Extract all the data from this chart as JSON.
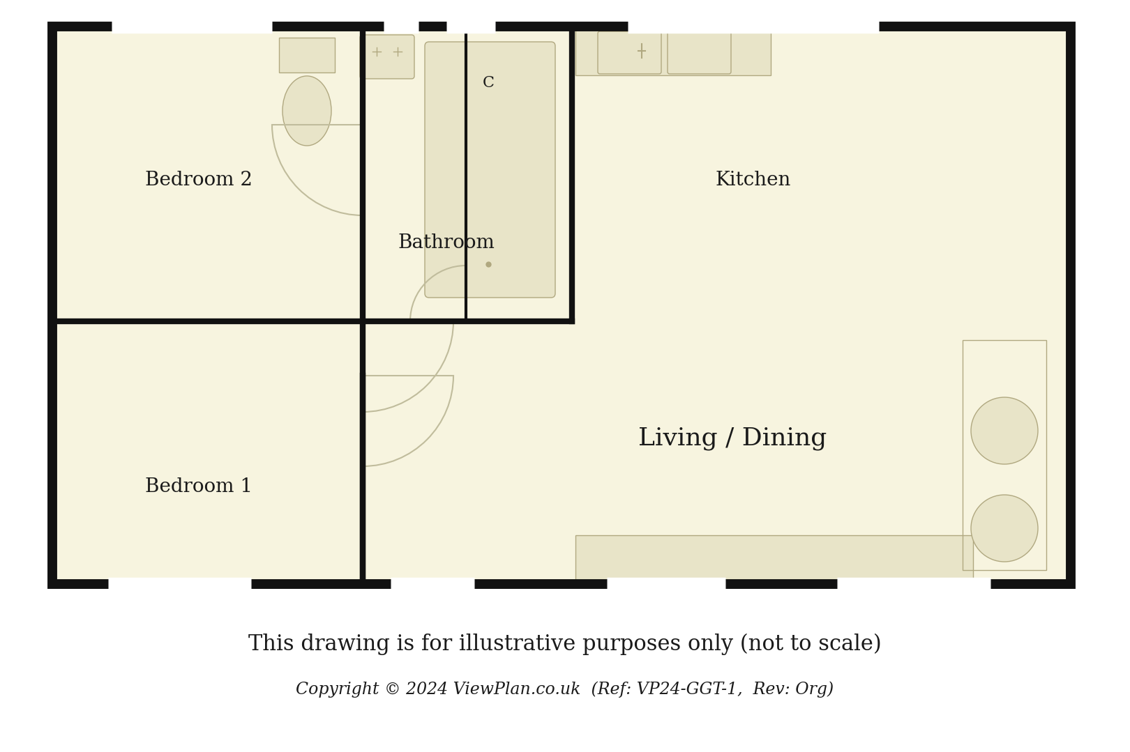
{
  "bg_color": "#ffffff",
  "floor_color": "#f7f4df",
  "wall_color": "#111111",
  "wall_lw": 10,
  "inner_wall_lw": 6,
  "fixture_color": "#e8e4c8",
  "fixture_edge": "#b0a880",
  "door_arc_color": "#c0bc9c",
  "title_text": "This drawing is for illustrative purposes only (not to scale)",
  "subtitle_text": "Copyright © 2024 ViewPlan.co.uk  (Ref: VP24-GGT-1,  Rev: Org)",
  "room_labels": {
    "bedroom2": "Bedroom 2",
    "bathroom": "Bathroom",
    "kitchen": "Kitchen",
    "living": "Living / Dining",
    "bedroom1": "Bedroom 1",
    "cupboard": "C"
  },
  "label_fontsize": 20,
  "living_fontsize": 26,
  "title_fontsize": 22,
  "subtitle_fontsize": 17
}
